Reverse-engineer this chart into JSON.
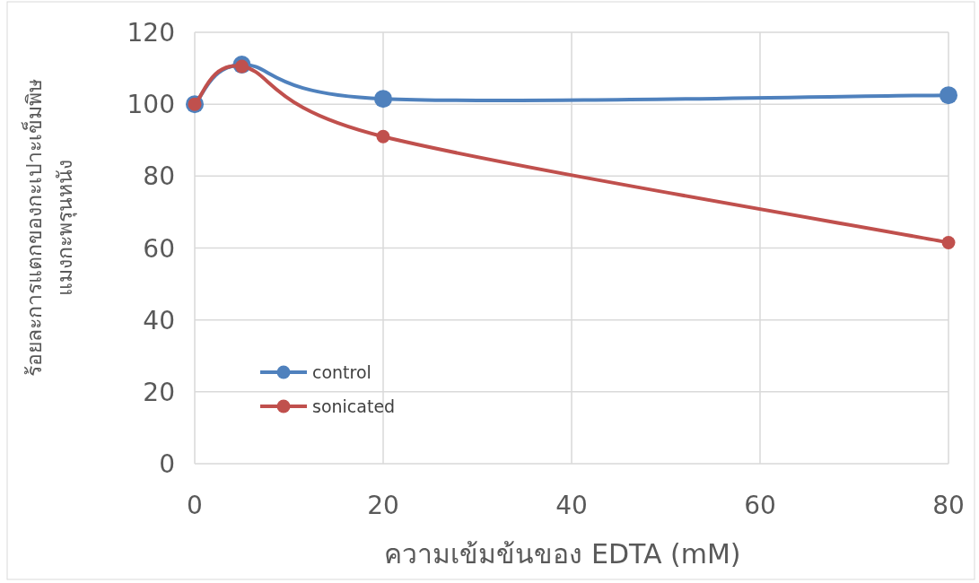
{
  "chart_data": {
    "type": "line",
    "xlabel": "ความเข้มข้นของ EDTA (mM)",
    "ylabel": "ร้อยละการแตกของกะเปาะเข็มพิษ แมงกะพรุนหนัง",
    "x": [
      0,
      5,
      20,
      80
    ],
    "series": [
      {
        "name": "control",
        "color": "#4f81bd",
        "values": [
          100,
          111,
          101.5,
          102.5
        ]
      },
      {
        "name": "sonicated",
        "color": "#c0504d",
        "values": [
          100,
          110.5,
          91,
          61.5
        ]
      }
    ],
    "xlim": [
      0,
      80
    ],
    "xticks": [
      0,
      20,
      40,
      60,
      80
    ],
    "ylim": [
      0,
      120
    ],
    "yticks": [
      0,
      20,
      40,
      60,
      80,
      100,
      120
    ],
    "grid": true,
    "legend": "bottom left",
    "marker": "circle",
    "line_style": "solid"
  }
}
